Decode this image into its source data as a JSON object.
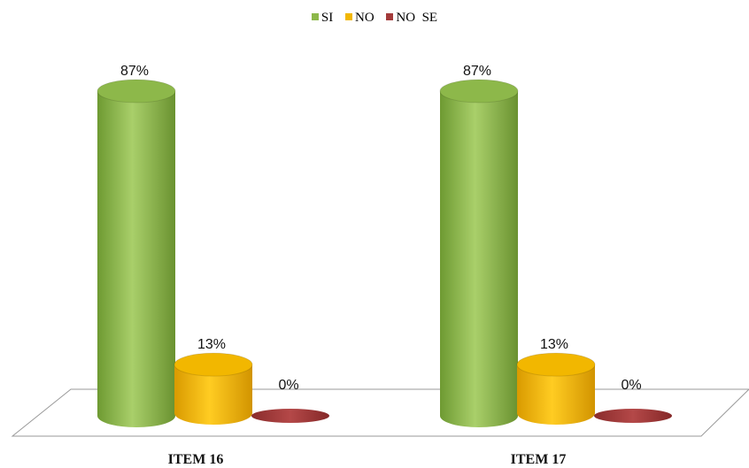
{
  "chart_data": {
    "type": "bar",
    "categories": [
      "ITEM 16",
      "ITEM 17"
    ],
    "series": [
      {
        "name": "SI",
        "values": [
          87,
          87
        ],
        "labels": [
          "87%",
          "87%"
        ],
        "color": "#8DB84A"
      },
      {
        "name": "NO",
        "values": [
          13,
          13
        ],
        "labels": [
          "13%",
          "13%"
        ],
        "color": "#F2B700"
      },
      {
        "name": "NO  SE",
        "values": [
          0,
          0
        ],
        "labels": [
          "0%",
          "0%"
        ],
        "color": "#A33A3A"
      }
    ],
    "unit": "%",
    "ylim": [
      0,
      100
    ],
    "legend_position": "top",
    "style": "3d-cylinder",
    "title": "",
    "xlabel": "",
    "ylabel": ""
  }
}
